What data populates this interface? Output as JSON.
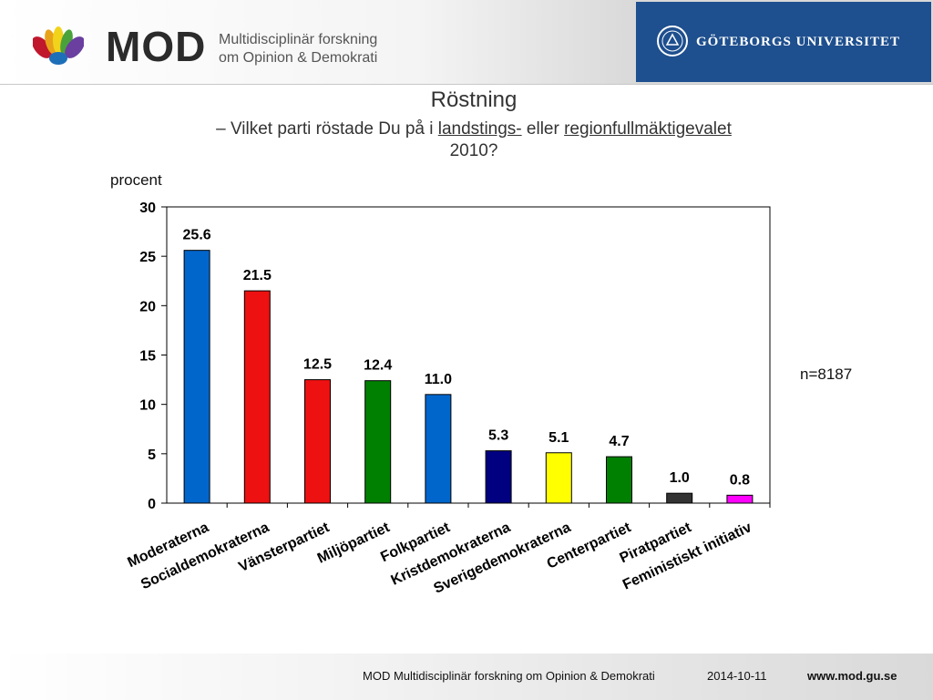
{
  "header": {
    "logo_text": "MOD",
    "logo_sub_line1": "Multidisciplinär forskning",
    "logo_sub_line2": "om Opinion & Demokrati",
    "university": "GÖTEBORGS UNIVERSITET",
    "university_color": "#1e4f8e"
  },
  "slide": {
    "title": "Röstning",
    "subtitle_part1": "– Vilket parti röstade Du på i ",
    "subtitle_link1": "landstings-",
    "subtitle_part2": " eller ",
    "subtitle_link2": "regionfullmäktigevalet",
    "subtitle_line2": "2010?",
    "unit_label": "procent",
    "n_label": "n=8187"
  },
  "chart_data": {
    "type": "bar",
    "title": "Röstning",
    "ylabel": "procent",
    "xlabel": "",
    "ylim": [
      0,
      30
    ],
    "yticks": [
      0,
      5,
      10,
      15,
      20,
      25,
      30
    ],
    "grid": false,
    "categories": [
      "Moderaterna",
      "Socialdemokraterna",
      "Vänsterpartiet",
      "Miljöpartiet",
      "Folkpartiet",
      "Kristdemokraterna",
      "Sverigedemokraterna",
      "Centerpartiet",
      "Piratpartiet",
      "Feministiskt initiativ"
    ],
    "values": [
      25.6,
      21.5,
      12.5,
      12.4,
      11.0,
      5.3,
      5.1,
      4.7,
      1.0,
      0.8
    ],
    "value_labels": [
      "25.6",
      "21.5",
      "12.5",
      "12.4",
      "11.0",
      "5.3",
      "5.1",
      "4.7",
      "1.0",
      "0.8"
    ],
    "colors": [
      "#0066cc",
      "#ee1111",
      "#ee1111",
      "#008000",
      "#0066cc",
      "#000080",
      "#ffff00",
      "#008000",
      "#333333",
      "#ff00ff"
    ]
  },
  "footer": {
    "org": "MOD Multidisciplinär forskning om Opinion & Demokrati",
    "date": "2014-10-11",
    "url": "www.mod.gu.se"
  }
}
